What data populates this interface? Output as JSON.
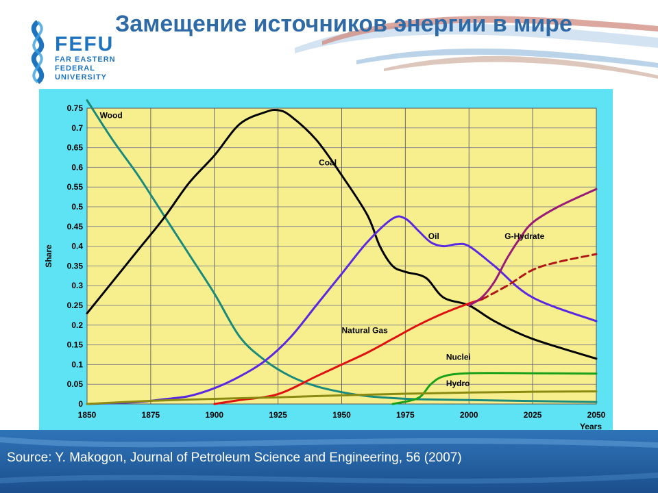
{
  "slide": {
    "title": "Замещение источников энергии в мире",
    "source": "Source: Y. Makogon, Journal of Petroleum Science and Engineering, 56 (2007)"
  },
  "logo": {
    "name": "FEFU",
    "sub1": "FAR EASTERN",
    "sub2": "FEDERAL",
    "sub3": "UNIVERSITY"
  },
  "colors": {
    "plot_background": "#f7ef8e",
    "panel_background": "#5ee3f5",
    "title": "#2e6aa6"
  },
  "chart_data": {
    "type": "line",
    "xlabel": "Years",
    "ylabel": "Share",
    "xlim": [
      1850,
      2050
    ],
    "ylim": [
      0,
      0.75
    ],
    "x_ticks": [
      1850,
      1875,
      1900,
      1925,
      1950,
      1975,
      2000,
      2025,
      2050
    ],
    "y_ticks": [
      0,
      0.05,
      0.1,
      0.15,
      0.2,
      0.25,
      0.3,
      0.35,
      0.4,
      0.45,
      0.5,
      0.55,
      0.6,
      0.65,
      0.7,
      0.75
    ],
    "y_tick_labels": [
      "0",
      "0.05",
      "0.1",
      "0.15",
      "0.2",
      "0.25",
      "0.3",
      "0.35",
      "0.4",
      "0.45",
      "0.5",
      "0.55",
      "0.6",
      "0.65",
      "0.7",
      "0.75"
    ],
    "grid": true,
    "series": [
      {
        "name": "Wood",
        "color": "#1a8a7a",
        "dashed": false,
        "x": [
          1850,
          1860,
          1870,
          1880,
          1890,
          1900,
          1910,
          1920,
          1930,
          1940,
          1950,
          1960,
          1970,
          1980,
          2000,
          2050
        ],
        "y": [
          0.77,
          0.67,
          0.58,
          0.48,
          0.38,
          0.28,
          0.17,
          0.11,
          0.07,
          0.045,
          0.03,
          0.02,
          0.015,
          0.012,
          0.01,
          0.005
        ]
      },
      {
        "name": "Coal",
        "color": "#000000",
        "dashed": false,
        "x": [
          1850,
          1860,
          1870,
          1880,
          1890,
          1900,
          1910,
          1920,
          1925,
          1930,
          1940,
          1950,
          1960,
          1965,
          1970,
          1975,
          1983,
          1990,
          2000,
          2010,
          2025,
          2050
        ],
        "y": [
          0.23,
          0.31,
          0.39,
          0.47,
          0.56,
          0.63,
          0.71,
          0.74,
          0.745,
          0.73,
          0.67,
          0.58,
          0.48,
          0.4,
          0.35,
          0.335,
          0.32,
          0.27,
          0.25,
          0.21,
          0.165,
          0.115
        ]
      },
      {
        "name": "Oil",
        "color": "#5a28e0",
        "dashed": false,
        "x": [
          1850,
          1870,
          1880,
          1890,
          1900,
          1910,
          1920,
          1930,
          1940,
          1950,
          1960,
          1970,
          1975,
          1980,
          1985,
          1990,
          1995,
          2000,
          2010,
          2025,
          2050
        ],
        "y": [
          0.0,
          0.005,
          0.012,
          0.02,
          0.04,
          0.07,
          0.11,
          0.17,
          0.25,
          0.33,
          0.41,
          0.47,
          0.47,
          0.44,
          0.41,
          0.4,
          0.405,
          0.4,
          0.35,
          0.27,
          0.21
        ]
      },
      {
        "name": "Natural Gas",
        "color": "#e01010",
        "dashed": false,
        "x": [
          1900,
          1910,
          1925,
          1940,
          1950,
          1960,
          1970,
          1980,
          1990,
          2000,
          2005
        ],
        "y": [
          0.0,
          0.01,
          0.025,
          0.07,
          0.1,
          0.13,
          0.165,
          0.2,
          0.23,
          0.255,
          0.265
        ]
      },
      {
        "name": "Natural Gas projection",
        "color": "#b01818",
        "dashed": true,
        "x": [
          2005,
          2015,
          2025,
          2035,
          2050
        ],
        "y": [
          0.265,
          0.3,
          0.34,
          0.36,
          0.38
        ]
      },
      {
        "name": "G-Hydrate",
        "color": "#9a1a78",
        "dashed": false,
        "x": [
          2000,
          2005,
          2010,
          2015,
          2020,
          2025,
          2035,
          2050
        ],
        "y": [
          0.25,
          0.27,
          0.31,
          0.37,
          0.42,
          0.46,
          0.5,
          0.545
        ]
      },
      {
        "name": "Nuclei",
        "color": "#1aa01a",
        "dashed": false,
        "x": [
          1970,
          1980,
          1985,
          1990,
          2000,
          2025,
          2050
        ],
        "y": [
          0.0,
          0.015,
          0.05,
          0.07,
          0.078,
          0.078,
          0.077
        ]
      },
      {
        "name": "Hydro",
        "color": "#8a8a10",
        "dashed": false,
        "x": [
          1850,
          1875,
          1900,
          1925,
          1950,
          1975,
          2000,
          2025,
          2050
        ],
        "y": [
          0.0,
          0.008,
          0.013,
          0.017,
          0.022,
          0.026,
          0.029,
          0.031,
          0.032
        ]
      }
    ],
    "annotations": [
      {
        "text": "Wood",
        "x": 1855,
        "y": 0.725
      },
      {
        "text": "Coal",
        "x": 1941,
        "y": 0.605
      },
      {
        "text": "Oil",
        "x": 1984,
        "y": 0.418
      },
      {
        "text": "G-Hydrate",
        "x": 2014,
        "y": 0.418
      },
      {
        "text": "Natural Gas",
        "x": 1950,
        "y": 0.18
      },
      {
        "text": "Nuclei",
        "x": 1991,
        "y": 0.112
      },
      {
        "text": "Hydro",
        "x": 1991,
        "y": 0.045
      }
    ]
  }
}
